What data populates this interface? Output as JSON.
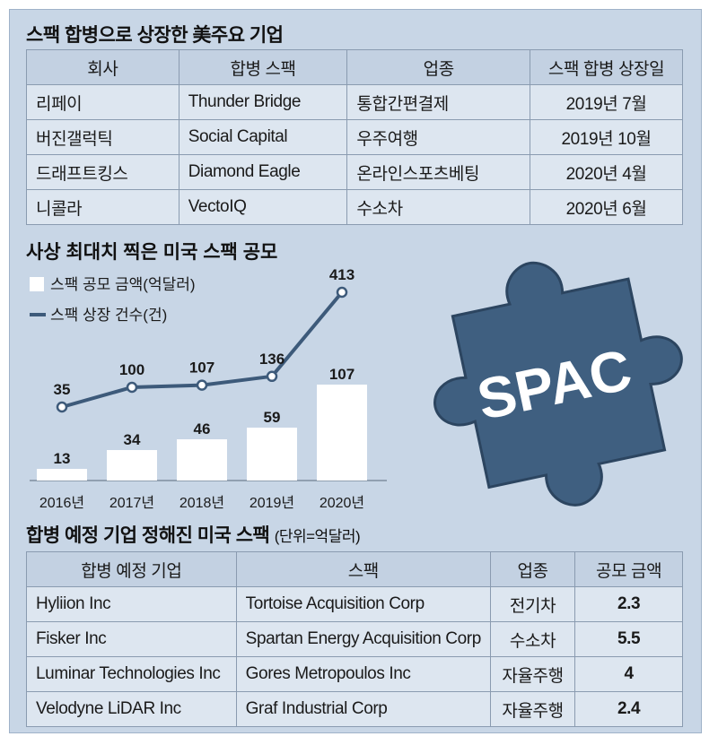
{
  "section1": {
    "title": "스팩 합병으로 상장한 美주요 기업",
    "headers": [
      "회사",
      "합병 스팩",
      "업종",
      "스팩 합병 상장일"
    ],
    "rows": [
      [
        "리페이",
        "Thunder Bridge",
        "통합간편결제",
        "2019년 7월"
      ],
      [
        "버진갤럭틱",
        "Social Capital",
        "우주여행",
        "2019년 10월"
      ],
      [
        "드래프트킹스",
        "Diamond Eagle",
        "온라인스포츠베팅",
        "2020년 4월"
      ],
      [
        "니콜라",
        "VectoIQ",
        "수소차",
        "2020년 6월"
      ]
    ]
  },
  "chart_data": {
    "type": "bar",
    "title": "사상 최대치 찍은 미국 스팩 공모",
    "categories": [
      "2016년",
      "2017년",
      "2018년",
      "2019년",
      "2020년"
    ],
    "series": [
      {
        "name": "스팩 공모 금액(억달러)",
        "type": "bar",
        "values": [
          13,
          34,
          46,
          59,
          107
        ]
      },
      {
        "name": "스팩 상장 건수(건)",
        "type": "line",
        "values": [
          35,
          100,
          107,
          136,
          413
        ]
      }
    ],
    "legend": "top-left",
    "grid": false
  },
  "puzzle": {
    "text": "SPAC"
  },
  "section3": {
    "title": "합병 예정 기업 정해진 미국 스팩",
    "unit": "(단위=억달러)",
    "headers": [
      "합병 예정 기업",
      "스팩",
      "업종",
      "공모 금액"
    ],
    "rows": [
      [
        "Hyliion Inc",
        "Tortoise Acquisition Corp",
        "전기차",
        "2.3"
      ],
      [
        "Fisker Inc",
        "Spartan Energy Acquisition Corp",
        "수소차",
        "5.5"
      ],
      [
        "Luminar Technologies Inc",
        "Gores Metropoulos Inc",
        "자율주행",
        "4"
      ],
      [
        "Velodyne LiDAR Inc",
        "Graf Industrial Corp",
        "자율주행",
        "2.4"
      ]
    ]
  },
  "colors": {
    "background": "#c8d6e6",
    "line": "#3d5a7a",
    "bar": "#ffffff",
    "puzzle": "#3f5f80"
  }
}
